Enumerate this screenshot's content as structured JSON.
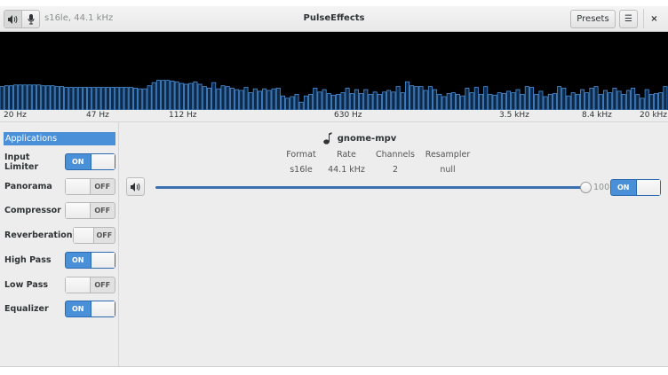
{
  "header": {
    "format": "s16le, 44.1 kHz",
    "title": "PulseEffects",
    "presets_label": "Presets",
    "menu_icon": "hamburger-icon",
    "close_label": "×",
    "output_icon": "speaker-icon",
    "input_icon": "microphone-icon"
  },
  "spectrum": {
    "freq_labels": [
      "20 Hz",
      "47 Hz",
      "112 Hz",
      "630 Hz",
      "3.5 kHz",
      "8.4 kHz",
      "20 kHz"
    ],
    "bar_color": "#4a90d9",
    "levels": [
      0.3,
      0.31,
      0.31,
      0.32,
      0.32,
      0.32,
      0.32,
      0.32,
      0.32,
      0.31,
      0.31,
      0.31,
      0.3,
      0.3,
      0.29,
      0.29,
      0.29,
      0.29,
      0.29,
      0.29,
      0.29,
      0.29,
      0.29,
      0.29,
      0.29,
      0.29,
      0.29,
      0.29,
      0.29,
      0.28,
      0.27,
      0.27,
      0.31,
      0.35,
      0.38,
      0.38,
      0.38,
      0.37,
      0.36,
      0.34,
      0.33,
      0.34,
      0.36,
      0.33,
      0.3,
      0.28,
      0.35,
      0.27,
      0.31,
      0.3,
      0.28,
      0.26,
      0.25,
      0.29,
      0.22,
      0.27,
      0.24,
      0.27,
      0.25,
      0.27,
      0.28,
      0.18,
      0.15,
      0.17,
      0.2,
      0.1,
      0.18,
      0.2,
      0.28,
      0.23,
      0.26,
      0.21,
      0.19,
      0.2,
      0.22,
      0.28,
      0.21,
      0.26,
      0.21,
      0.26,
      0.2,
      0.23,
      0.2,
      0.23,
      0.25,
      0.23,
      0.3,
      0.22,
      0.36,
      0.31,
      0.3,
      0.3,
      0.25,
      0.3,
      0.26,
      0.2,
      0.17,
      0.21,
      0.22,
      0.2,
      0.18,
      0.28,
      0.22,
      0.29,
      0.2,
      0.3,
      0.2,
      0.19,
      0.22,
      0.21,
      0.24,
      0.22,
      0.26,
      0.2,
      0.3,
      0.29,
      0.2,
      0.24,
      0.17,
      0.2,
      0.21,
      0.3,
      0.28,
      0.18,
      0.22,
      0.2,
      0.26,
      0.22,
      0.28,
      0.3,
      0.2,
      0.25,
      0.22,
      0.28,
      0.24,
      0.2,
      0.25,
      0.28,
      0.2,
      0.15,
      0.26,
      0.2,
      0.21,
      0.22,
      0.3
    ]
  },
  "sidebar": {
    "applications_label": "Applications",
    "items": [
      {
        "label": "Input Limiter",
        "state": "ON"
      },
      {
        "label": "Panorama",
        "state": "OFF"
      },
      {
        "label": "Compressor",
        "state": "OFF"
      },
      {
        "label": "Reverberation",
        "state": "OFF"
      },
      {
        "label": "High Pass",
        "state": "ON"
      },
      {
        "label": "Low Pass",
        "state": "OFF"
      },
      {
        "label": "Equalizer",
        "state": "ON"
      }
    ]
  },
  "stream": {
    "name": "gnome-mpv",
    "icon": "music-note-icon",
    "columns": [
      {
        "header": "Format",
        "value": "s16le"
      },
      {
        "header": "Rate",
        "value": "44.1 kHz"
      },
      {
        "header": "Channels",
        "value": "2"
      },
      {
        "header": "Resampler",
        "value": "null"
      }
    ],
    "volume": "100",
    "volume_fraction": 1.0,
    "enabled": "ON"
  }
}
